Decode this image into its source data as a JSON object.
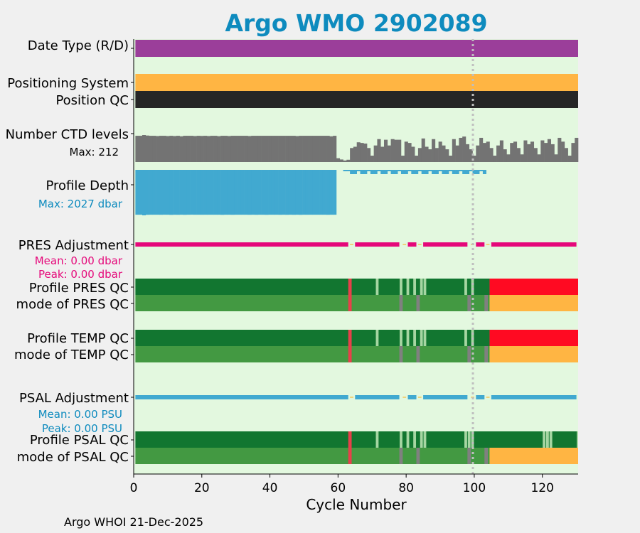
{
  "chart_data": {
    "type": "status-timeline",
    "title": "Argo WMO 2902089",
    "xlabel": "Cycle Number",
    "xlim": [
      0,
      130.5
    ],
    "xticks": [
      0,
      20,
      40,
      60,
      80,
      100,
      120
    ],
    "marker_cycle": 99.6,
    "footer": "Argo WHOI 21-Dec-2025",
    "colors": {
      "title": "#0e8bbe",
      "panel_bg": "#e3f8df",
      "date_type": "#9b3e9a",
      "positioning": "#ffb543",
      "position_qc": "#262626",
      "ctd": "#737373",
      "depth": "#41a9d0",
      "pres_adj": "#e5087a",
      "psal_adj": "#41a9d0",
      "adj_marker": "#f0d27a",
      "qc_good": "#127630",
      "qc_mode_good": "#439942",
      "qc_bad": "#ff0a22",
      "qc_mode_bad": "#ffb543",
      "qc_gap": "#a6d6a2",
      "qc_gray": "#808080",
      "qc_red_line": "#e7404a",
      "marker_line": "#bfbfbf"
    },
    "rows": {
      "date_type": "Date Type (R/D)",
      "positioning": "Positioning System",
      "position_qc": "Position QC",
      "ctd": "Number CTD levels",
      "ctd_max": "Max: 212",
      "depth": "Profile Depth",
      "depth_max": "Max: 2027 dbar",
      "pres_adj": "PRES Adjustment",
      "pres_mean": "Mean: 0.00 dbar",
      "pres_peak": "Peak: 0.00 dbar",
      "pres_qc": "Profile PRES QC",
      "pres_mode": "mode of PRES QC",
      "temp_qc": "Profile TEMP QC",
      "temp_mode": "mode of TEMP QC",
      "psal_adj": "PSAL Adjustment",
      "psal_mean": "Mean: 0.00 PSU",
      "psal_peak": "Peak: 0.00 PSU",
      "psal_qc": "Profile PSAL QC",
      "psal_mode": "mode of PSAL QC"
    },
    "ctd_levels": {
      "max": 212,
      "cycles_1_59": [
        206,
        206,
        212,
        208,
        206,
        206,
        204,
        206,
        206,
        204,
        206,
        204,
        206,
        202,
        206,
        206,
        206,
        204,
        206,
        205,
        206,
        204,
        206,
        206,
        203,
        206,
        206,
        204,
        206,
        206,
        206,
        206,
        206,
        204,
        206,
        206,
        206,
        206,
        206,
        206,
        206,
        206,
        206,
        206,
        206,
        206,
        206,
        204,
        206,
        206,
        206,
        206,
        206,
        206,
        206,
        206,
        206,
        202,
        206
      ],
      "cycles_60_63": [
        30,
        20,
        12,
        18
      ],
      "cycles_64_130": [
        110,
        120,
        155,
        150,
        145,
        110,
        50,
        130,
        180,
        120,
        175,
        130,
        180,
        175,
        175,
        50,
        160,
        150,
        120,
        50,
        110,
        185,
        120,
        100,
        180,
        110,
        160,
        130,
        100,
        50,
        180,
        130,
        190,
        200,
        140,
        100,
        50,
        130,
        190,
        150,
        160,
        110,
        50,
        130,
        170,
        100,
        60,
        150,
        160,
        110,
        60,
        170,
        140,
        160,
        110,
        60,
        170,
        150,
        180,
        140,
        60,
        190,
        160,
        110,
        50,
        150,
        190
      ]
    },
    "profile_depth": {
      "max": 2027,
      "deep_cycles": [
        1,
        59
      ],
      "deep_depths_dbar": [
        2000,
        2000,
        2027,
        2003,
        2000,
        2000,
        2000,
        2002,
        1999,
        2000,
        2006,
        2001,
        2003,
        2000,
        2004,
        2000,
        1998,
        2000,
        2000,
        2001,
        2000,
        2000,
        2000,
        2000,
        2000,
        2005,
        2000,
        2000,
        2003,
        2000,
        2000,
        2000,
        2000,
        2003,
        2000,
        2003,
        2000,
        2001,
        2004,
        2000,
        2000,
        2000,
        2003,
        2000,
        2003,
        2000,
        2003,
        2000,
        2004,
        2000,
        2001,
        2000,
        2000,
        2000,
        2000,
        2000,
        2003,
        2000,
        2000
      ],
      "shallow_depth_dbar": 200,
      "shallow_cycles": [
        62,
        103
      ]
    },
    "adjustments": {
      "pres_segments": [
        [
          0.5,
          63
        ],
        [
          65,
          78
        ],
        [
          80.5,
          83
        ],
        [
          85,
          98
        ],
        [
          100.5,
          103
        ],
        [
          105,
          130
        ]
      ],
      "psal_segments": [
        [
          0.5,
          63
        ],
        [
          65,
          78
        ],
        [
          80.5,
          83
        ],
        [
          85,
          98
        ],
        [
          100.5,
          103
        ],
        [
          105,
          130
        ]
      ],
      "gap_markers": [
        64,
        79.5,
        84,
        99.5,
        104
      ]
    },
    "qc": {
      "profile_base": "good",
      "profile_bad_from": 104.5,
      "mode_bad_from": 104.5,
      "psal_gap_cycles": [
        71.5,
        78.5,
        80.5,
        82.5,
        84.5,
        85.5,
        97.5,
        98.5,
        99.5,
        120.5,
        121.5,
        122.5,
        130.5
      ],
      "pres_gap_cycles": [
        71.5,
        78.5,
        80.5,
        82.5,
        84.5,
        85.5,
        97.5,
        99.5
      ],
      "temp_gap_cycles": [
        71.5,
        78.5,
        80.5,
        82.5,
        84.5,
        85.5,
        97.5,
        99.5
      ],
      "red_line_cycle": 63.5,
      "mode_gray_cycles": [
        78.5,
        83.5,
        98.5,
        103.5
      ]
    }
  }
}
